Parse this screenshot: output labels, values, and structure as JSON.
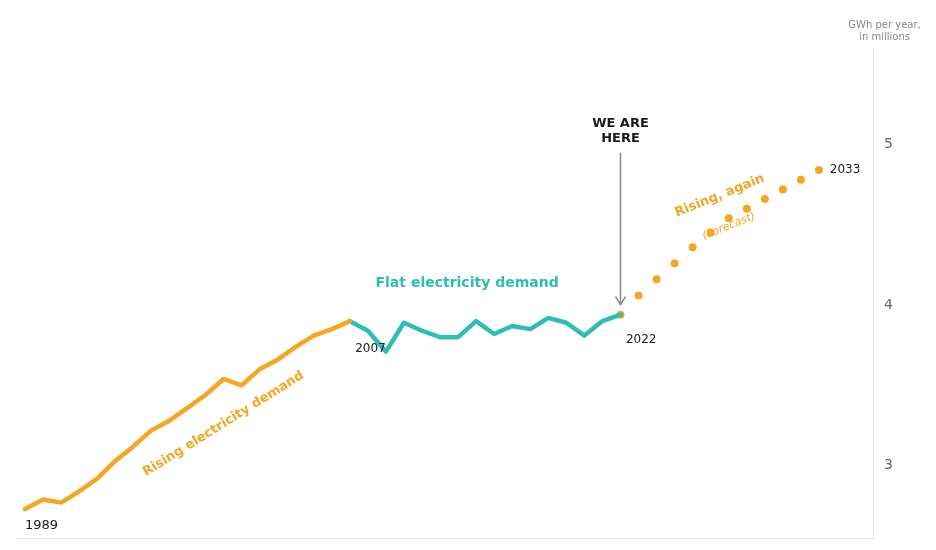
{
  "chart_data": {
    "type": "line",
    "series": [
      {
        "x": [
          1989,
          1990,
          1991,
          1992,
          1993,
          1994,
          1995,
          1996,
          1997,
          1998,
          1999,
          2000,
          2001,
          2002,
          2003,
          2004,
          2005,
          2006,
          2007
        ],
        "values": [
          2.73,
          2.79,
          2.77,
          2.84,
          2.92,
          3.03,
          3.12,
          3.22,
          3.28,
          3.36,
          3.44,
          3.54,
          3.5,
          3.6,
          3.66,
          3.74,
          3.81,
          3.85,
          3.9
        ],
        "color": "#F5A623",
        "line_style": "solid"
      },
      {
        "x": [
          2007,
          2008,
          2009,
          2010,
          2011,
          2012,
          2013,
          2014,
          2015,
          2016,
          2017,
          2018,
          2019,
          2020,
          2021,
          2022
        ],
        "values": [
          3.9,
          3.84,
          3.71,
          3.89,
          3.84,
          3.8,
          3.8,
          3.9,
          3.82,
          3.87,
          3.85,
          3.92,
          3.89,
          3.81,
          3.9,
          3.94
        ],
        "color": "#2EBDB5",
        "line_style": "solid"
      },
      {
        "x": [
          2022,
          2023,
          2024,
          2025,
          2026,
          2027,
          2028,
          2029,
          2030,
          2031,
          2032,
          2033
        ],
        "values": [
          3.94,
          4.06,
          4.16,
          4.26,
          4.36,
          4.45,
          4.54,
          4.6,
          4.66,
          4.72,
          4.78,
          4.84
        ],
        "color": "#F5A623",
        "marker": "circle",
        "line_style": "none"
      }
    ],
    "xlim": [
      1988.5,
      2036
    ],
    "ylim": [
      2.55,
      5.6
    ],
    "yticks": [
      3,
      4,
      5
    ],
    "y_label": "GWh per year,\nin millions",
    "grid": false,
    "tick_labels": "y",
    "annotations": [
      {
        "text": "1989",
        "x": 1989.0,
        "y": 2.58,
        "color": "#1a1a1a"
      },
      {
        "text": "2007",
        "x": 2007.3,
        "y": 3.77,
        "color": "#1a1a1a"
      },
      {
        "text": "2022",
        "x": 2022.3,
        "y": 3.83,
        "color": "#1a1a1a"
      },
      {
        "text": "2033",
        "x": 2033.6,
        "y": 4.84,
        "color": "#1a1a1a"
      },
      {
        "text": "Rising electricity demand",
        "x": 2000,
        "y": 3.26,
        "color": "#F5A623"
      },
      {
        "text": "Flat electricity demand",
        "x": 2013.5,
        "y": 4.08,
        "color": "#2EBDB5"
      },
      {
        "text": "Rising, again",
        "x": 2027.5,
        "y": 4.68,
        "color": "#F5A623"
      },
      {
        "text": "(Forecast)",
        "x": 2028,
        "y": 4.49,
        "color": "#F5A623"
      },
      {
        "text": "WE ARE\nHERE",
        "x": 2022,
        "y": 5.18,
        "color": "#1a1a1a"
      }
    ]
  }
}
